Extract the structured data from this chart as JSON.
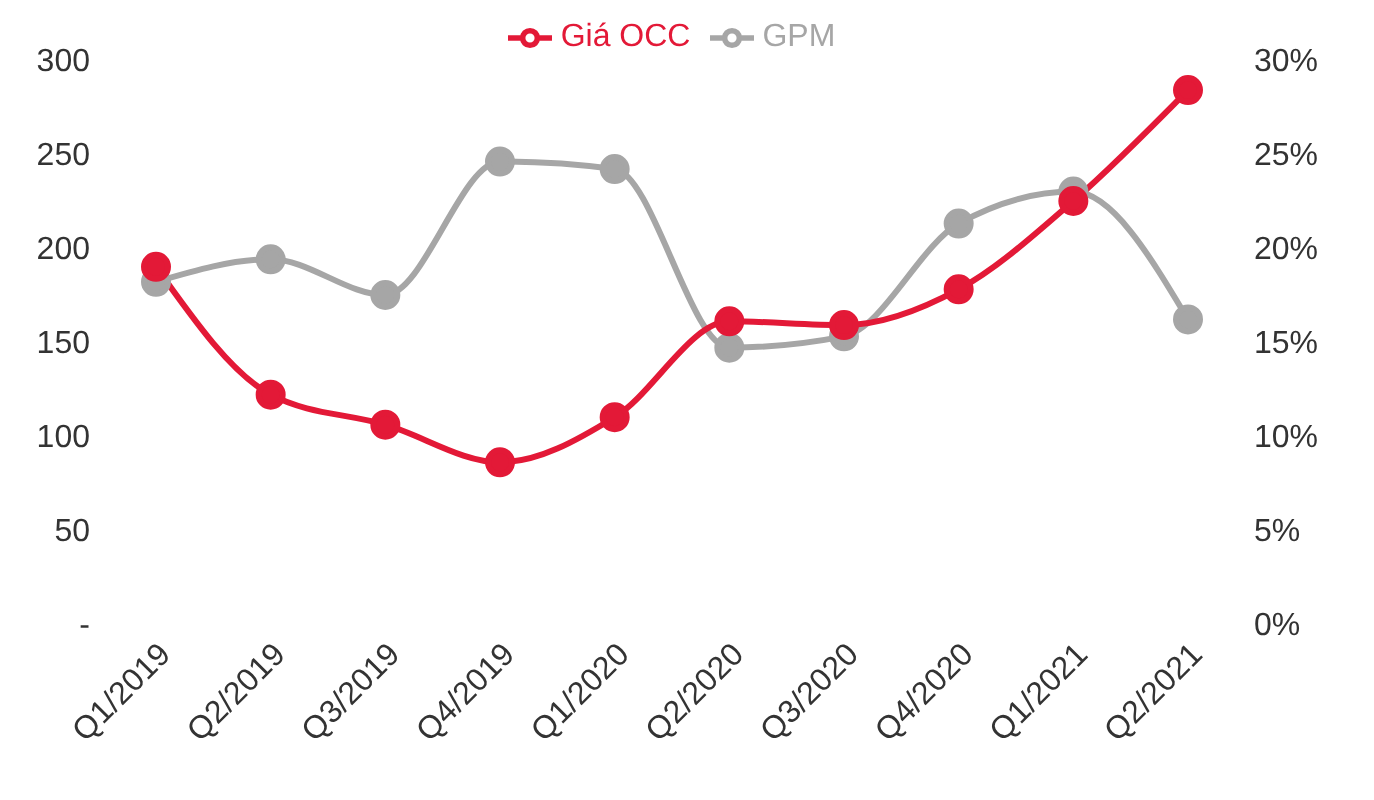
{
  "chart_data": {
    "type": "line",
    "categories": [
      "Q1/2019",
      "Q2/2019",
      "Q3/2019",
      "Q4/2019",
      "Q1/2020",
      "Q2/2020",
      "Q3/2020",
      "Q4/2020",
      "Q1/2021",
      "Q2/2021"
    ],
    "series": [
      {
        "name": "Giá OCC",
        "color": "#e31937",
        "values": [
          190,
          122,
          106,
          86,
          110,
          161,
          159,
          178,
          225,
          284
        ]
      },
      {
        "name": "GPM",
        "color": "#a6a6a6",
        "axis": "y2",
        "values": [
          18.2,
          19.4,
          17.5,
          24.6,
          24.2,
          14.7,
          15.3,
          21.3,
          23.0,
          16.2
        ]
      }
    ],
    "ylim": [
      0,
      300
    ],
    "yticks": [
      {
        "value": 0,
        "label": "-"
      },
      50,
      100,
      150,
      200,
      250,
      300
    ],
    "y2lim": [
      0,
      30
    ],
    "y2ticks": [
      {
        "value": 0,
        "label": "0%"
      },
      {
        "value": 5,
        "label": "5%"
      },
      {
        "value": 10,
        "label": "10%"
      },
      {
        "value": 15,
        "label": "15%"
      },
      {
        "value": 20,
        "label": "20%"
      },
      {
        "value": 25,
        "label": "25%"
      },
      {
        "value": 30,
        "label": "30%"
      }
    ],
    "legend": "top",
    "marker": "circle",
    "line_style": "solid",
    "grid": false
  }
}
